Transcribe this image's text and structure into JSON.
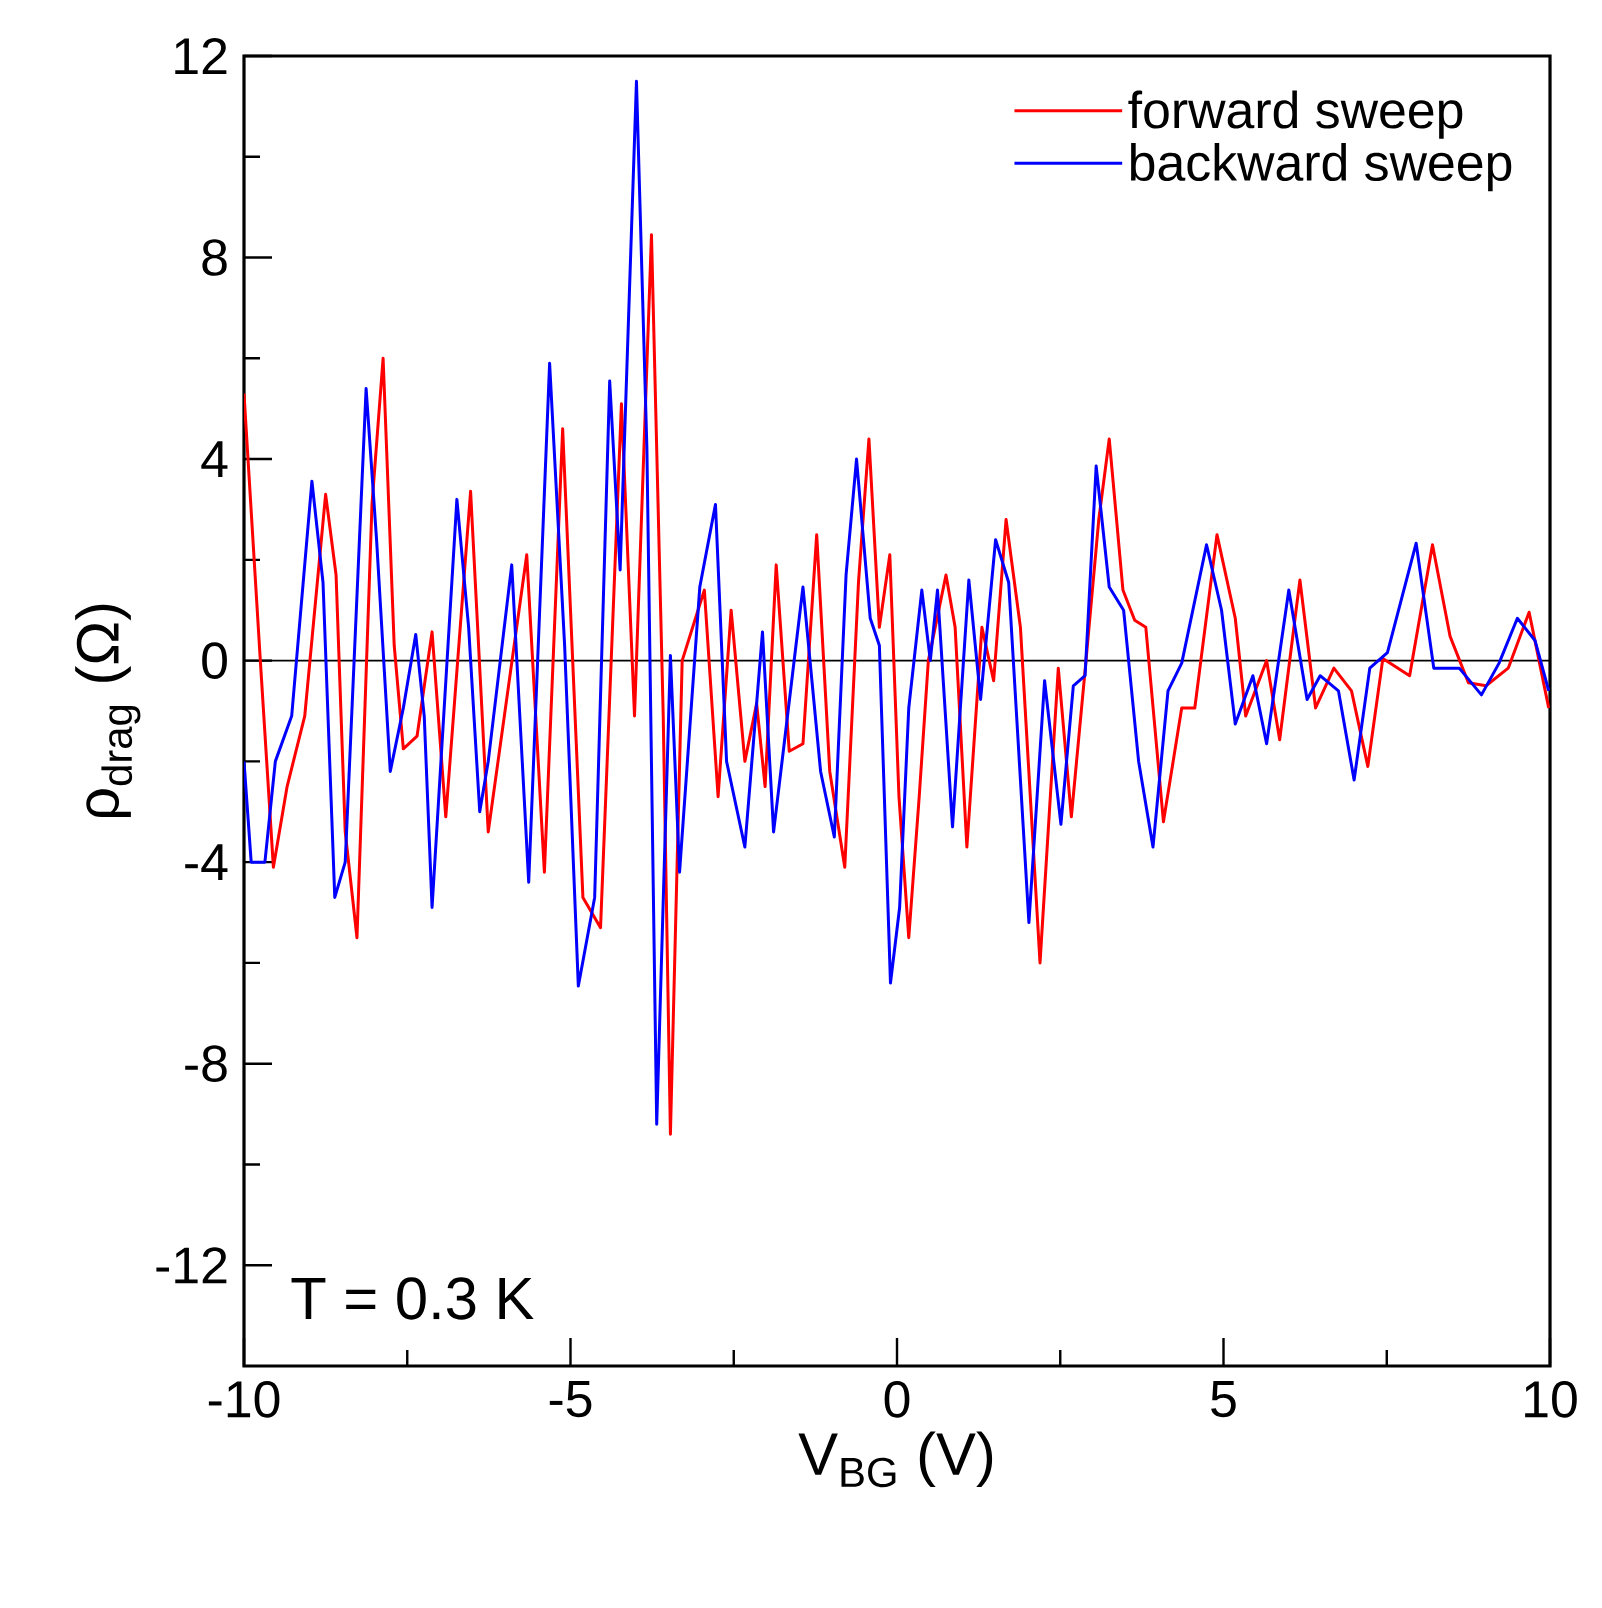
{
  "chart_data": {
    "type": "line",
    "xlabel": "V$_{BG}$ (V)",
    "ylabel": "ρ$_{drag}$ (Ω)",
    "xlim": [
      -10,
      10
    ],
    "ylim": [
      -14,
      12
    ],
    "xticks": [
      -10,
      -5,
      0,
      5,
      10
    ],
    "yticks": [
      -12,
      -8,
      -4,
      0,
      4,
      8,
      12
    ],
    "grid": false,
    "legend": "top right",
    "marker": "none",
    "line_style": "solid",
    "annotations": [
      "T = 0.3 K"
    ],
    "ref_lines": [
      {
        "axis": "y",
        "value": 0,
        "color": "#000000"
      }
    ],
    "series": [
      {
        "name": "forward sweep",
        "color": "#ff0000",
        "x": [
          -10,
          -9.75,
          -9.55,
          -9.34,
          -9.07,
          -8.75,
          -8.59,
          -8.45,
          -8.27,
          -8.04,
          -7.87,
          -7.7,
          -7.56,
          -7.35,
          -7.12,
          -6.91,
          -6.53,
          -6.26,
          -5.67,
          -5.4,
          -5.12,
          -4.81,
          -4.54,
          -4.22,
          -4.02,
          -3.76,
          -3.58,
          -3.47,
          -3.29,
          -2.95,
          -2.74,
          -2.54,
          -2.33,
          -2.15,
          -2.02,
          -1.85,
          -1.65,
          -1.44,
          -1.23,
          -1.03,
          -0.8,
          -0.59,
          -0.43,
          -0.27,
          -0.11,
          0.03,
          0.18,
          0.34,
          0.48,
          0.75,
          0.89,
          1.07,
          1.3,
          1.48,
          1.67,
          1.89,
          2.19,
          2.47,
          2.67,
          2.88,
          3.09,
          3.25,
          3.46,
          3.64,
          3.81,
          4.08,
          4.36,
          4.56,
          4.9,
          5.18,
          5.34,
          5.66,
          5.86,
          6.17,
          6.41,
          6.69,
          6.96,
          7.21,
          7.44,
          7.85,
          8.2,
          8.47,
          8.75,
          9.02,
          9.36,
          9.68,
          9.98
        ],
        "values": [
          5.3,
          0,
          -4.1,
          -2.5,
          -1.1,
          3.3,
          1.7,
          -3.4,
          -5.5,
          3.1,
          6.0,
          0.3,
          -1.75,
          -1.5,
          0.57,
          -3.1,
          3.36,
          -3.4,
          2.1,
          -4.2,
          4.6,
          -4.7,
          -5.3,
          5.1,
          -1.1,
          8.45,
          -1.1,
          -9.4,
          0,
          1.4,
          -2.7,
          1.0,
          -2.0,
          -0.85,
          -2.5,
          1.9,
          -1.8,
          -1.65,
          2.5,
          -2.2,
          -4.1,
          1.55,
          4.4,
          0.66,
          2.1,
          -2.7,
          -5.5,
          -2.7,
          0,
          1.7,
          0.66,
          -3.7,
          0.66,
          -0.4,
          2.8,
          0.66,
          -6.0,
          -0.15,
          -3.1,
          -0.2,
          2.8,
          4.4,
          1.4,
          0.8,
          0.66,
          -3.2,
          -0.94,
          -0.94,
          2.5,
          0.84,
          -1.1,
          0,
          -1.57,
          1.6,
          -0.94,
          -0.15,
          -0.6,
          -2.1,
          0.04,
          -0.3,
          2.3,
          0.48,
          -0.44,
          -0.5,
          -0.15,
          0.96,
          -0.94
        ]
      },
      {
        "name": "backward sweep",
        "color": "#0000ff",
        "x": [
          -10,
          -9.89,
          -9.68,
          -9.52,
          -9.27,
          -8.96,
          -8.79,
          -8.61,
          -8.45,
          -8.13,
          -7.97,
          -7.76,
          -7.56,
          -7.37,
          -7.24,
          -7.12,
          -6.74,
          -6.56,
          -6.39,
          -6.26,
          -5.9,
          -5.64,
          -5.32,
          -5.09,
          -4.88,
          -4.63,
          -4.4,
          -4.24,
          -3.99,
          -3.83,
          -3.68,
          -3.47,
          -3.33,
          -3.02,
          -2.78,
          -2.61,
          -2.33,
          -2.06,
          -1.89,
          -1.44,
          -1.17,
          -0.96,
          -0.78,
          -0.62,
          -0.41,
          -0.27,
          -0.1,
          0.04,
          0.18,
          0.38,
          0.51,
          0.62,
          0.85,
          1.1,
          1.28,
          1.51,
          1.71,
          2.02,
          2.26,
          2.51,
          2.7,
          2.88,
          3.05,
          3.25,
          3.47,
          3.7,
          3.92,
          4.15,
          4.36,
          4.74,
          4.97,
          5.18,
          5.45,
          5.66,
          6.0,
          6.28,
          6.48,
          6.76,
          7.0,
          7.24,
          7.51,
          7.95,
          8.22,
          8.61,
          8.95,
          9.22,
          9.5,
          9.77,
          9.98
        ],
        "values": [
          -2.0,
          -4.0,
          -4.0,
          -2.0,
          -1.1,
          3.56,
          1.55,
          -4.7,
          -4.0,
          5.4,
          2.4,
          -2.2,
          -0.94,
          0.52,
          -1.1,
          -4.9,
          3.2,
          0.66,
          -3.0,
          -2.0,
          1.9,
          -4.4,
          5.9,
          0.3,
          -6.46,
          -4.7,
          5.55,
          1.8,
          11.5,
          4.2,
          -9.2,
          0.1,
          -4.2,
          1.46,
          3.1,
          -2.0,
          -3.7,
          0.57,
          -3.4,
          1.46,
          -2.2,
          -3.5,
          1.7,
          4.0,
          0.84,
          0.3,
          -6.4,
          -4.9,
          -0.94,
          1.4,
          0,
          1.4,
          -3.3,
          1.6,
          -0.77,
          2.4,
          1.55,
          -5.2,
          -0.4,
          -3.25,
          -0.5,
          -0.3,
          3.86,
          1.46,
          1.0,
          -2.0,
          -3.7,
          -0.6,
          -0.05,
          2.3,
          1.0,
          -1.26,
          -0.3,
          -1.65,
          1.4,
          -0.77,
          -0.3,
          -0.6,
          -2.37,
          -0.15,
          0.16,
          2.33,
          -0.15,
          -0.15,
          -0.68,
          -0.05,
          0.84,
          0.4,
          -0.6
        ]
      }
    ]
  }
}
